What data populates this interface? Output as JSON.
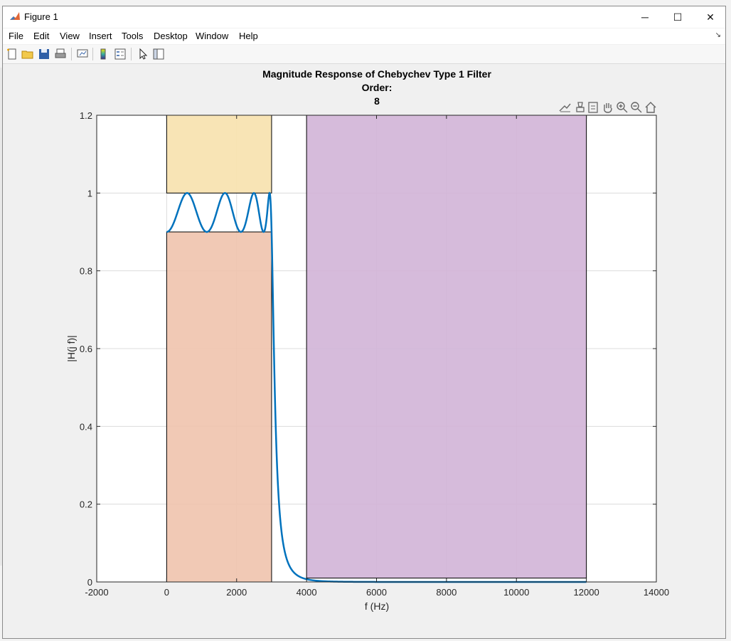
{
  "window": {
    "title": "Figure 1",
    "controls": {
      "minimize": "─",
      "maximize": "☐",
      "close": "✕"
    }
  },
  "menu": {
    "items": [
      "File",
      "Edit",
      "View",
      "Insert",
      "Tools",
      "Desktop",
      "Window",
      "Help"
    ]
  },
  "toolbar": {
    "icons": [
      "new-figure-icon",
      "open-file-icon",
      "save-icon",
      "print-icon",
      "link-plot-icon",
      "colorbar-icon",
      "legend-icon",
      "pointer-icon",
      "property-inspector-icon"
    ]
  },
  "axes_toolbar": {
    "icons": [
      "data-tip-icon",
      "brush-icon",
      "export-icon",
      "pan-icon",
      "zoom-in-icon",
      "zoom-out-icon",
      "home-icon"
    ]
  },
  "chart_data": {
    "type": "line",
    "title_lines": [
      "Magnitude Response of Chebychev Type 1 Filter",
      "Order:",
      "8"
    ],
    "xlabel": "f (Hz)",
    "ylabel": "|H(j f)|",
    "xlim": [
      -2000,
      14000
    ],
    "ylim": [
      0,
      1.2
    ],
    "xticks": [
      -2000,
      0,
      2000,
      4000,
      6000,
      8000,
      10000,
      12000,
      14000
    ],
    "xtick_labels": [
      "-2000",
      "0",
      "2000",
      "4000",
      "6000",
      "8000",
      "10000",
      "12000",
      "14000"
    ],
    "yticks": [
      0,
      0.2,
      0.4,
      0.6,
      0.8,
      1.0,
      1.2
    ],
    "ytick_labels": [
      "0",
      "0.2",
      "0.4",
      "0.6",
      "0.8",
      "1",
      "1.2"
    ],
    "grid": true,
    "regions": [
      {
        "name": "passband-upper-mask",
        "x": [
          0,
          3000
        ],
        "y": [
          1.0,
          1.2
        ],
        "color": "#f7e1ad"
      },
      {
        "name": "passband-lower-mask",
        "x": [
          0,
          3000
        ],
        "y": [
          0,
          0.9
        ],
        "color": "#f0c3ad"
      },
      {
        "name": "stopband-mask",
        "x": [
          4000,
          12000
        ],
        "y": [
          0.01,
          1.2
        ],
        "color": "#d2b4d7"
      }
    ],
    "series": [
      {
        "name": "magnitude-response",
        "color": "#0072bd",
        "filter": {
          "order": 8,
          "cutoff_hz": 3000,
          "ripple_min": 0.9,
          "ripple_max": 1.0
        },
        "f_range": [
          0,
          12000
        ]
      }
    ],
    "colors": {
      "axes_bg": "#ffffff",
      "grid": "#dcdcdc",
      "axis": "#262626",
      "tick_text": "#262626"
    }
  }
}
